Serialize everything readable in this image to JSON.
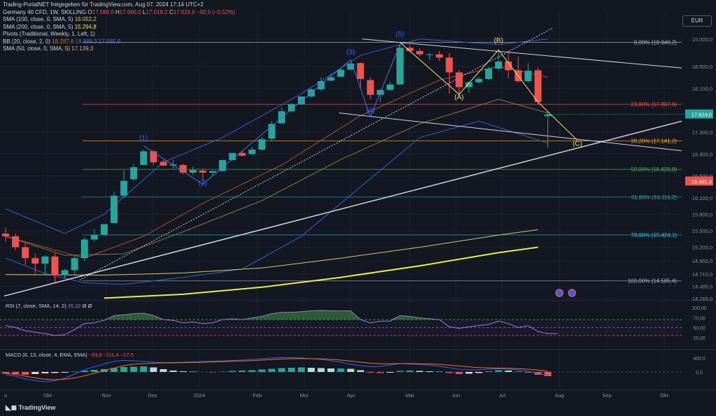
{
  "header": {
    "title": "Trading-PortalNET freigegeben für TradingView.com, Aug 07, 2024 17:14 UTC+2",
    "symbol_line": {
      "name": "Germany 40 CFD, 1W, SKILLING",
      "o_label": "O",
      "o": "17.589,6",
      "h_label": "H",
      "h": "17.666,0",
      "l_label": "L",
      "l": "17.018,2",
      "c_label": "C",
      "c": "17.624,0",
      "change": "−92,5 (−0,52%)"
    },
    "indicators": [
      {
        "label": "SMA (100, close, 0, SMA, 5)",
        "value": "16.052,2",
        "color": "#d9c86a"
      },
      {
        "label": "SMA (200, close, 0, SMA, 5)",
        "value": "15.294,8",
        "color": "#e7ee44"
      },
      {
        "label": "Pivots (Traditional, Weekly, 1, Left, 1)",
        "value": "",
        "color": "#d1d4dc"
      },
      {
        "label": "BB (20, close, 2, 0)",
        "value": "18.287,6",
        "value2": "18.989,3",
        "value3": "17.585,9",
        "color": "#c87a3c",
        "color2": "#4a72d6",
        "color3": "#4a72d6"
      },
      {
        "label": "SMA (50, close, 0, SMA, 5)",
        "value": "17.139,3",
        "color": "#d9b36a"
      }
    ]
  },
  "currency": "EUR",
  "colors": {
    "bg": "#131722",
    "up": "#26a69a",
    "down": "#ef5350",
    "grid": "#1e2230",
    "axis": "#8a8f9c"
  },
  "chart_data": {
    "type": "candlestick",
    "title": "Germany 40 CFD, 1W, SKILLING",
    "price_axis": [
      "19.000,0",
      "18.500,0",
      "18.100,0",
      "17.624,0",
      "17.300,0",
      "16.900,0",
      "16.500,0",
      "16.401,4",
      "16.100,0",
      "15.800,0",
      "15.500,0",
      "15.200,0",
      "14.950,0",
      "14.710,0",
      "14.485,0",
      "14.265,0"
    ],
    "price_ticks": [
      19000,
      18500,
      18100,
      17300,
      16900,
      16500,
      16100,
      15800,
      15500,
      15200,
      14950,
      14710,
      14485,
      14265
    ],
    "x_labels": [
      "Okt",
      "Nov",
      "Dez",
      "2024",
      "Feb",
      "Mrz",
      "Apr",
      "Mai",
      "Jun",
      "Jul",
      "Aug",
      "Sep",
      "Okt"
    ],
    "current_price": {
      "label": "17.624,0",
      "value": 17624
    },
    "red_level": {
      "label": "16.401,4",
      "value": 16401.4
    },
    "candles": [
      [
        15450,
        15560,
        15300,
        15400
      ],
      [
        15400,
        15450,
        15150,
        15200
      ],
      [
        15200,
        15270,
        14880,
        15000
      ],
      [
        15000,
        15080,
        14720,
        14900
      ],
      [
        14900,
        15050,
        14700,
        15030
      ],
      [
        15030,
        15100,
        14560,
        14690
      ],
      [
        14690,
        14800,
        14630,
        14780
      ],
      [
        14780,
        15050,
        14700,
        15000
      ],
      [
        15000,
        15380,
        14950,
        15340
      ],
      [
        15340,
        15530,
        15300,
        15420
      ],
      [
        15430,
        15620,
        15400,
        15620
      ],
      [
        15640,
        16210,
        15630,
        16140
      ],
      [
        16140,
        16600,
        16100,
        16410
      ],
      [
        16440,
        16720,
        16410,
        16660
      ],
      [
        16700,
        16980,
        16690,
        16950
      ],
      [
        16950,
        16970,
        16700,
        16750
      ],
      [
        16760,
        16790,
        16680,
        16690
      ],
      [
        16690,
        16800,
        16620,
        16710
      ],
      [
        16700,
        16720,
        16530,
        16560
      ],
      [
        16560,
        16670,
        16520,
        16610
      ],
      [
        16600,
        16640,
        16420,
        16560
      ],
      [
        16560,
        16600,
        16490,
        16590
      ],
      [
        16590,
        16800,
        16580,
        16790
      ],
      [
        16790,
        16920,
        16780,
        16920
      ],
      [
        16920,
        16960,
        16850,
        16870
      ],
      [
        16900,
        17020,
        16880,
        16980
      ],
      [
        16980,
        17210,
        16960,
        17170
      ],
      [
        17180,
        17500,
        17150,
        17450
      ],
      [
        17460,
        17750,
        17450,
        17680
      ],
      [
        17680,
        17830,
        17660,
        17810
      ],
      [
        17810,
        17960,
        17790,
        17950
      ],
      [
        17950,
        18100,
        17930,
        18080
      ],
      [
        18080,
        18300,
        18050,
        18230
      ],
      [
        18240,
        18340,
        18220,
        18300
      ],
      [
        18310,
        18470,
        18300,
        18440
      ],
      [
        18440,
        18560,
        18430,
        18550
      ],
      [
        18560,
        18570,
        18100,
        18270
      ],
      [
        18250,
        18300,
        17900,
        17980
      ],
      [
        17980,
        18080,
        17850,
        18070
      ],
      [
        18070,
        18220,
        18050,
        18170
      ],
      [
        18170,
        18900,
        18160,
        18840
      ],
      [
        18840,
        18900,
        18760,
        18780
      ],
      [
        18780,
        18830,
        18690,
        18720
      ],
      [
        18720,
        18740,
        18620,
        18720
      ],
      [
        18720,
        18780,
        18600,
        18660
      ],
      [
        18660,
        18740,
        18000,
        18390
      ],
      [
        18390,
        18430,
        18000,
        18120
      ],
      [
        18120,
        18230,
        18020,
        18210
      ],
      [
        18210,
        18310,
        18180,
        18270
      ],
      [
        18270,
        18490,
        18250,
        18460
      ],
      [
        18460,
        18760,
        18430,
        18590
      ],
      [
        18590,
        18790,
        18280,
        18430
      ],
      [
        18430,
        18680,
        18200,
        18230
      ],
      [
        18230,
        18570,
        18200,
        18420
      ],
      [
        18430,
        18480,
        17800,
        17850
      ],
      [
        17590,
        17666,
        17018,
        17624
      ]
    ],
    "sma100": [
      [
        0,
        14700
      ],
      [
        10,
        14690
      ],
      [
        18,
        14730
      ],
      [
        26,
        14820
      ],
      [
        34,
        15000
      ],
      [
        42,
        15200
      ],
      [
        50,
        15420
      ],
      [
        54,
        15520
      ]
    ],
    "sma200": [
      [
        10,
        14270
      ],
      [
        18,
        14340
      ],
      [
        26,
        14470
      ],
      [
        34,
        14650
      ],
      [
        42,
        14860
      ],
      [
        50,
        15100
      ],
      [
        54,
        15200
      ]
    ],
    "sma50": [
      [
        0,
        15400
      ],
      [
        6,
        15050
      ],
      [
        12,
        15080
      ],
      [
        18,
        15480
      ],
      [
        26,
        16050
      ],
      [
        34,
        16800
      ],
      [
        42,
        17450
      ],
      [
        50,
        17900
      ],
      [
        55,
        17650
      ]
    ],
    "bb_upper": [
      [
        0,
        15900
      ],
      [
        6,
        15450
      ],
      [
        10,
        15800
      ],
      [
        16,
        16750
      ],
      [
        22,
        17200
      ],
      [
        30,
        18000
      ],
      [
        36,
        18700
      ],
      [
        42,
        19000
      ],
      [
        50,
        18900
      ],
      [
        55,
        19000
      ]
    ],
    "bb_lower": [
      [
        0,
        15000
      ],
      [
        4,
        14720
      ],
      [
        8,
        14550
      ],
      [
        12,
        14520
      ],
      [
        18,
        14650
      ],
      [
        24,
        14800
      ],
      [
        30,
        15400
      ],
      [
        36,
        16300
      ],
      [
        42,
        17200
      ],
      [
        48,
        17500
      ],
      [
        55,
        17100
      ]
    ],
    "bb_basis": [
      [
        0,
        15400
      ],
      [
        8,
        15000
      ],
      [
        14,
        15400
      ],
      [
        20,
        16000
      ],
      [
        28,
        16700
      ],
      [
        36,
        17600
      ],
      [
        44,
        18250
      ],
      [
        50,
        18500
      ],
      [
        55,
        18300
      ]
    ],
    "fibs": [
      {
        "label": "0,00% (18.940,2)",
        "value": 18940.2,
        "color": "#b2b5be"
      },
      {
        "label": "23,60% (17.807,6)",
        "value": 17807.6,
        "color": "#ef5350"
      },
      {
        "label": "38,20% (17.141,2)",
        "value": 17141.2,
        "color": "#f7a21b"
      },
      {
        "label": "50,00% (16.620,8)",
        "value": 16620.8,
        "color": "#4caf50"
      },
      {
        "label": "61,80% (16.116,2)",
        "value": 16116.2,
        "color": "#26a69a"
      },
      {
        "label": "78,60% (15.424,1)",
        "value": 15424.1,
        "color": "#26c6da"
      },
      {
        "label": "100,00% (14.585,4)",
        "value": 14585.4,
        "color": "#b2b5be"
      }
    ],
    "waves": [
      {
        "label": "(1)",
        "i": 14,
        "value": 17150,
        "color": "#2962ff"
      },
      {
        "label": "(2)",
        "i": 20,
        "value": 16330,
        "color": "#2962ff"
      },
      {
        "label": "(3)",
        "i": 35,
        "value": 18720,
        "color": "#2962ff"
      },
      {
        "label": "(4)",
        "i": 37,
        "value": 17660,
        "color": "#2962ff"
      },
      {
        "label": "(5)",
        "i": 40,
        "value": 19050,
        "color": "#2962ff"
      },
      {
        "label": "(A)",
        "i": 46,
        "value": 17900,
        "color": "#f5e26a"
      },
      {
        "label": "(B)",
        "i": 50,
        "value": 18930,
        "color": "#f5e26a"
      },
      {
        "label": "(C)",
        "i": 58,
        "value": 17050,
        "color": "#f5e26a"
      }
    ],
    "rsi": {
      "label": "RSI (7, close, SMA, 14, 2)",
      "value": "35,32",
      "extra": "Ø Ø",
      "ticks": [
        "100,00",
        "75,00",
        "50,00",
        "25,00"
      ]
    },
    "macd": {
      "label": "MACD (6, 13, close, 4, EMA, EMA)",
      "values": [
        "−93,9",
        "−111,4",
        "−17,5"
      ],
      "ticks": [
        "400,0",
        "0,0"
      ]
    }
  },
  "footer": {
    "brand": "TradingView"
  }
}
